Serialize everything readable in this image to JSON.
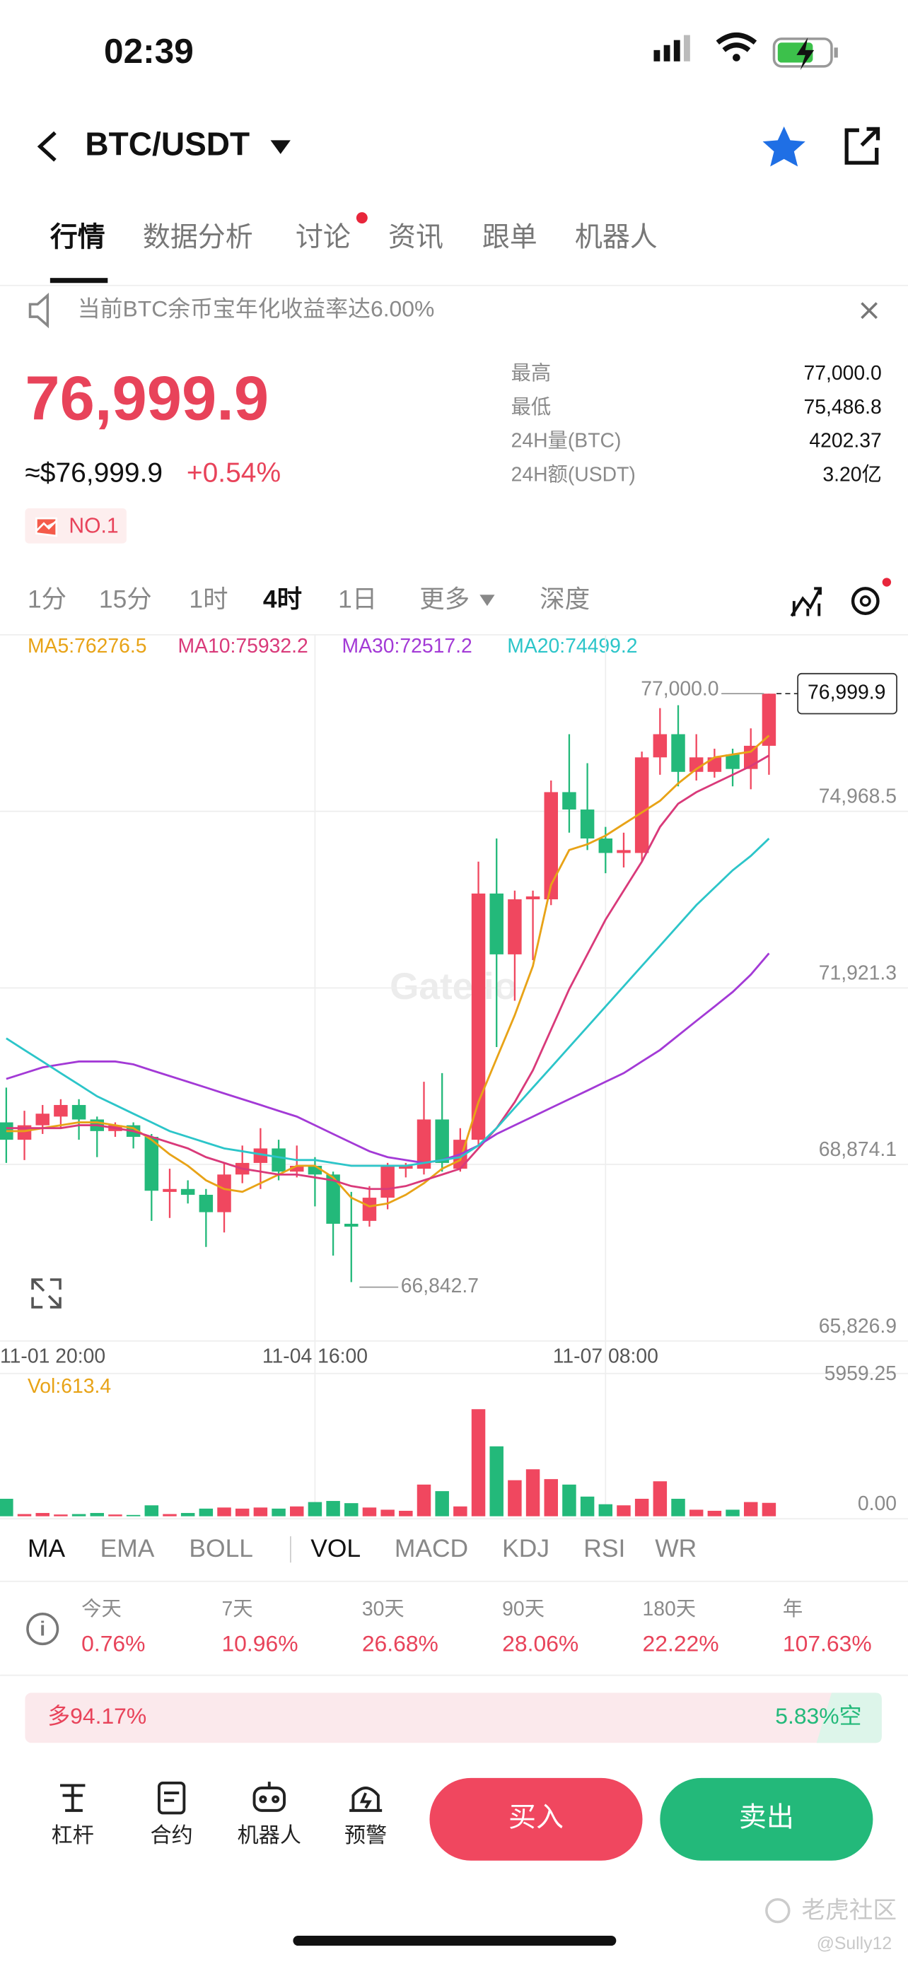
{
  "status_bar": {
    "time": "02:39"
  },
  "header": {
    "pair": "BTC/USDT"
  },
  "tabs": [
    "行情",
    "数据分析",
    "讨论",
    "资讯",
    "跟单",
    "机器人"
  ],
  "notice": "当前BTC余币宝年化收益率达6.00%",
  "ticker": {
    "price": "76,999.9",
    "usd": "≈$76,999.9",
    "change": "+0.54%",
    "rank": "NO.1"
  },
  "stats": [
    {
      "label": "最高",
      "value": "77,000.0"
    },
    {
      "label": "最低",
      "value": "75,486.8"
    },
    {
      "label": "24H量(BTC)",
      "value": "4202.37"
    },
    {
      "label": "24H额(USDT)",
      "value": "3.20亿"
    }
  ],
  "timeframes": [
    "1分",
    "15分",
    "1时",
    "4时",
    "1日",
    "更多",
    "深度"
  ],
  "chart_data": {
    "type": "candlestick",
    "watermark": "Gate.io",
    "categories": [
      "11-01 20:00",
      null,
      null,
      null,
      null,
      null,
      null,
      null,
      null,
      null,
      null,
      null,
      null,
      null,
      null,
      null,
      null,
      "11-04 16:00",
      null,
      null,
      null,
      null,
      null,
      null,
      null,
      null,
      null,
      null,
      null,
      null,
      null,
      null,
      null,
      "11-07 08:00",
      null,
      null,
      null,
      null,
      null,
      null,
      null,
      null,
      null
    ],
    "open": [
      69600,
      69300,
      69550,
      69700,
      69900,
      69650,
      69450,
      69550,
      69350,
      68400,
      68450,
      68350,
      68050,
      68700,
      68900,
      69150,
      68750,
      68850,
      68700,
      67850,
      67900,
      68300,
      68800,
      68800,
      69650,
      68800,
      69300,
      73550,
      72500,
      73450,
      73450,
      75300,
      75000,
      74500,
      74250,
      74250,
      75900,
      76300,
      75650,
      75650,
      75950,
      75700,
      76100
    ],
    "high": [
      70200,
      69800,
      69900,
      70000,
      70000,
      69700,
      69600,
      69600,
      69400,
      68800,
      68600,
      68450,
      68900,
      69200,
      69500,
      69300,
      69200,
      69000,
      68750,
      68400,
      68500,
      68900,
      68900,
      70300,
      70450,
      69500,
      74100,
      74500,
      73600,
      73600,
      75500,
      76300,
      75800,
      74700,
      74600,
      76000,
      76750,
      76800,
      76300,
      76050,
      76050,
      76400,
      77000
    ],
    "low": [
      68900,
      68950,
      69400,
      69500,
      69300,
      69000,
      69350,
      69150,
      67900,
      67950,
      68200,
      67450,
      67700,
      68550,
      68450,
      68600,
      68650,
      68150,
      67300,
      66842.7,
      67800,
      68100,
      68650,
      68700,
      68750,
      68750,
      69200,
      70900,
      71700,
      72400,
      73350,
      74600,
      74300,
      73900,
      74000,
      74100,
      75600,
      75400,
      75500,
      75550,
      75400,
      75350,
      75600
    ],
    "close": [
      69300,
      69550,
      69750,
      69900,
      69650,
      69450,
      69550,
      69350,
      68420,
      68450,
      68350,
      68050,
      68700,
      68900,
      69150,
      68750,
      68850,
      68700,
      67850,
      67800,
      68300,
      68850,
      68850,
      69650,
      68900,
      69300,
      73550,
      72500,
      73450,
      73500,
      75300,
      75000,
      74500,
      74250,
      74300,
      75900,
      76300,
      75650,
      75900,
      75900,
      75700,
      76100,
      76999.9
    ],
    "up_color": "#f0475f",
    "down_color": "#23b97a",
    "series": [
      {
        "name": "MA5:76276.5",
        "color": "#e8a317",
        "values": [
          69450,
          69450,
          69500,
          69550,
          69600,
          69600,
          69550,
          69500,
          69300,
          69050,
          68850,
          68600,
          68450,
          68400,
          68550,
          68700,
          68850,
          68850,
          68650,
          68300,
          68150,
          68200,
          68350,
          68550,
          68800,
          68950,
          69950,
          70700,
          71450,
          72300,
          73700,
          74300,
          74400,
          74550,
          74750,
          74950,
          75150,
          75450,
          75700,
          75900,
          75950,
          76000,
          76276.5
        ]
      },
      {
        "name": "MA10:75932.2",
        "color": "#d93a7a",
        "values": [
          69500,
          69500,
          69500,
          69500,
          69550,
          69550,
          69500,
          69450,
          69350,
          69250,
          69150,
          69000,
          68900,
          68800,
          68750,
          68700,
          68700,
          68650,
          68600,
          68500,
          68450,
          68450,
          68500,
          68600,
          68700,
          68800,
          69150,
          69500,
          69950,
          70500,
          71200,
          71900,
          72500,
          73100,
          73600,
          74100,
          74700,
          75100,
          75300,
          75450,
          75600,
          75750,
          75932.2
        ]
      },
      {
        "name": "MA30:72517.2",
        "color": "#a33ad6",
        "values": [
          70350,
          70450,
          70550,
          70600,
          70650,
          70650,
          70650,
          70600,
          70500,
          70400,
          70300,
          70200,
          70100,
          70000,
          69900,
          69800,
          69700,
          69550,
          69400,
          69250,
          69100,
          69000,
          68950,
          68900,
          68950,
          69050,
          69200,
          69400,
          69550,
          69700,
          69850,
          70000,
          70150,
          70300,
          70450,
          70650,
          70850,
          71100,
          71350,
          71600,
          71850,
          72150,
          72517.2
        ]
      },
      {
        "name": "MA20:74499.2",
        "color": "#2cc5c9",
        "values": [
          71050,
          70850,
          70650,
          70450,
          70250,
          70050,
          69900,
          69750,
          69600,
          69450,
          69350,
          69250,
          69150,
          69100,
          69050,
          69000,
          68950,
          68950,
          68900,
          68850,
          68850,
          68850,
          68850,
          68900,
          68950,
          69000,
          69200,
          69500,
          69850,
          70200,
          70550,
          70900,
          71250,
          71600,
          71950,
          72300,
          72650,
          73000,
          73350,
          73650,
          73950,
          74200,
          74499.2
        ]
      }
    ],
    "ylim": [
      65826.9,
      78015.7
    ],
    "yticks": [
      {
        "value": 65826.9,
        "label": "65,826.9"
      },
      {
        "value": 68874.1,
        "label": "68,874.1"
      },
      {
        "value": 71921.3,
        "label": "71,921.3"
      },
      {
        "value": 74968.5,
        "label": "74,968.5"
      }
    ],
    "grid": true,
    "annotations": {
      "high": "77,000.0",
      "low": "66,842.7",
      "last": "76,999.9"
    },
    "volume": {
      "label": "Vol:613.4",
      "values": [
        800,
        100,
        150,
        80,
        100,
        150,
        80,
        60,
        500,
        100,
        150,
        350,
        400,
        350,
        400,
        350,
        450,
        650,
        700,
        600,
        400,
        300,
        250,
        1450,
        1150,
        450,
        4900,
        3200,
        1650,
        2150,
        1700,
        1450,
        900,
        550,
        500,
        800,
        1600,
        800,
        300,
        250,
        300,
        650,
        613.4
      ],
      "ylim": [
        0,
        5959.25
      ],
      "yticks": [
        {
          "value": 0,
          "label": "0.00"
        },
        5959.25
      ]
    }
  },
  "indicators": [
    "MA",
    "EMA",
    "BOLL",
    "VOL",
    "MACD",
    "KDJ",
    "RSI",
    "WR"
  ],
  "returns": [
    {
      "period": "今天",
      "value": "0.76%"
    },
    {
      "period": "7天",
      "value": "10.96%"
    },
    {
      "period": "30天",
      "value": "26.68%"
    },
    {
      "period": "90天",
      "value": "28.06%"
    },
    {
      "period": "180天",
      "value": "22.22%"
    },
    {
      "period": "年",
      "value": "107.63%"
    }
  ],
  "long_short": {
    "long": "多94.17%",
    "short": "5.83%空"
  },
  "bottom_nav": {
    "items": [
      "杠杆",
      "合约",
      "机器人",
      "预警"
    ],
    "buy": "买入",
    "sell": "卖出"
  },
  "watermark": {
    "brand": "老虎社区",
    "user": "@Sully12"
  }
}
